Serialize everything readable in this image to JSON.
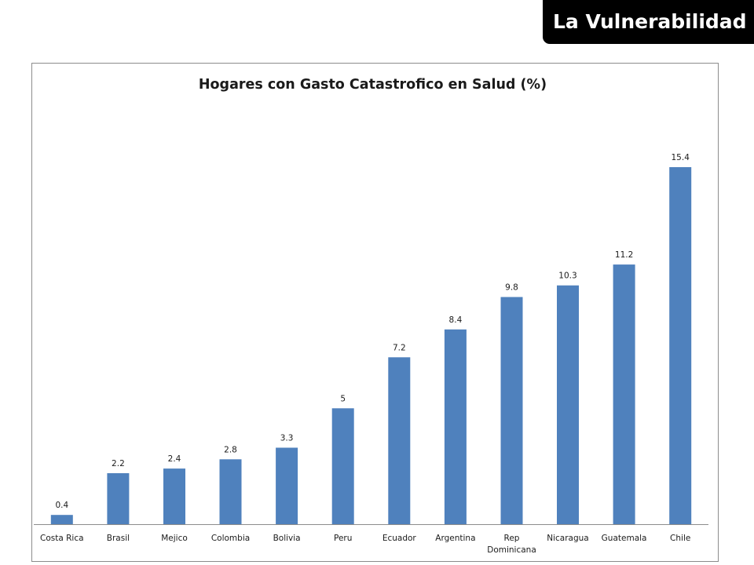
{
  "badge": {
    "text": "La Vulnerabilidad"
  },
  "chart_data": {
    "type": "bar",
    "title": "Hogares con Gasto Catastrofico en Salud (%)",
    "xlabel": "",
    "ylabel": "",
    "categories": [
      "Costa Rica",
      "Brasil",
      "Mejico",
      "Colombia",
      "Bolivia",
      "Peru",
      "Ecuador",
      "Argentina",
      "Rep Dominicana",
      "Nicaragua",
      "Guatemala",
      "Chile"
    ],
    "category_lines": [
      [
        "Costa Rica"
      ],
      [
        "Brasil"
      ],
      [
        "Mejico"
      ],
      [
        "Colombia"
      ],
      [
        "Bolivia"
      ],
      [
        "Peru"
      ],
      [
        "Ecuador"
      ],
      [
        "Argentina"
      ],
      [
        "Rep",
        "Dominicana"
      ],
      [
        "Nicaragua"
      ],
      [
        "Guatemala"
      ],
      [
        "Chile"
      ]
    ],
    "values": [
      0.4,
      2.2,
      2.4,
      2.8,
      3.3,
      5,
      7.2,
      8.4,
      9.8,
      10.3,
      11.2,
      15.4
    ],
    "value_labels": [
      "0.4",
      "2.2",
      "2.4",
      "2.8",
      "3.3",
      "5",
      "7.2",
      "8.4",
      "9.8",
      "10.3",
      "11.2",
      "15.4"
    ],
    "ylim": [
      0,
      15.4
    ],
    "grid": false,
    "legend": "none",
    "bar_color": "#4f81bd",
    "axis_color": "#8c8c8c"
  }
}
